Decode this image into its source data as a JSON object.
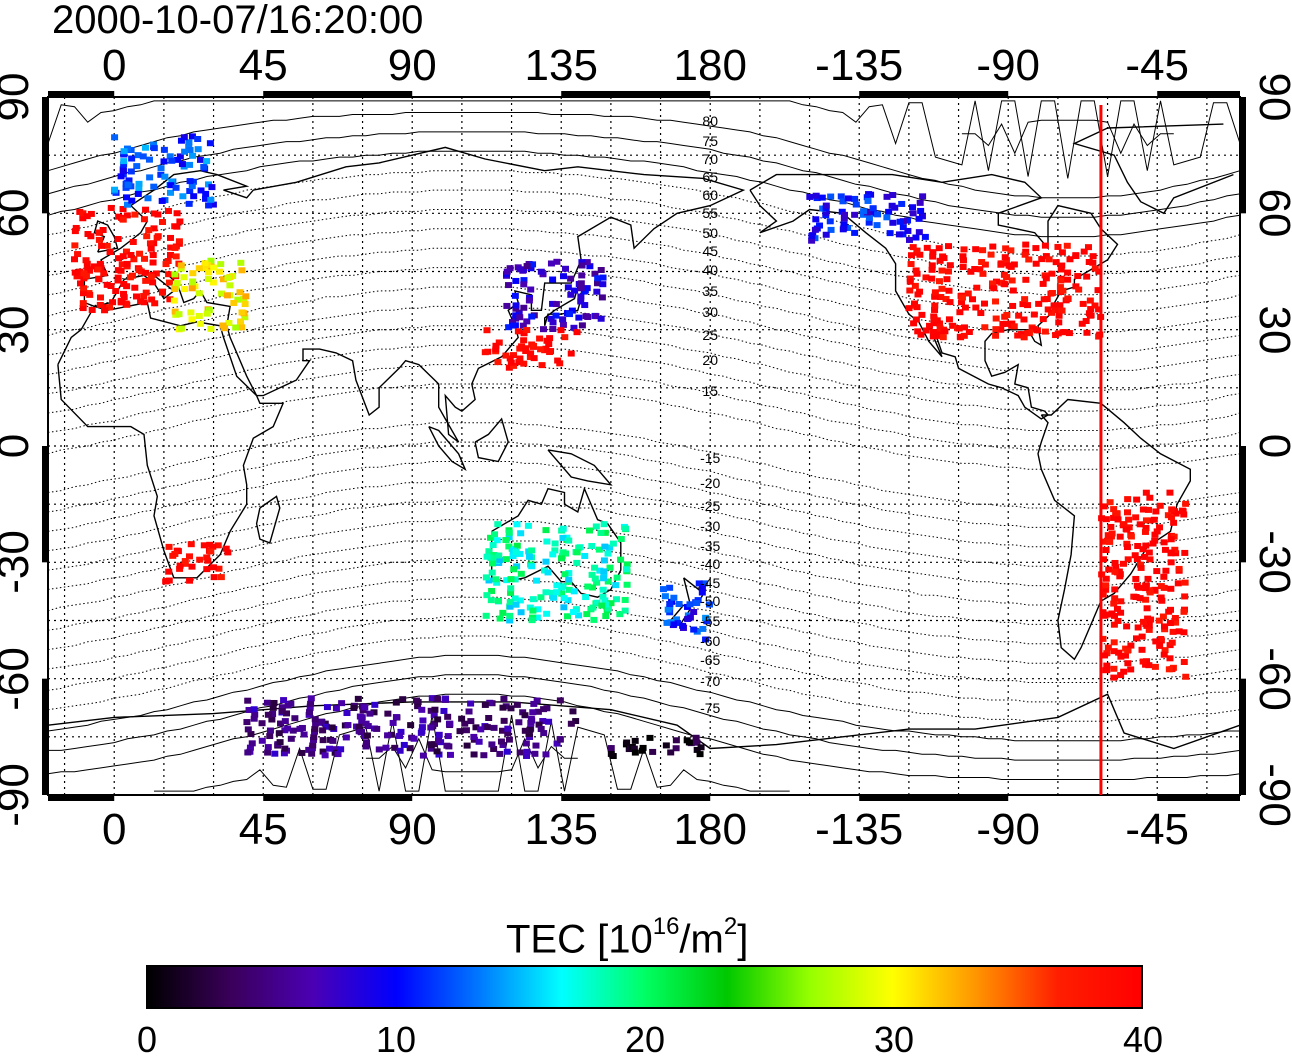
{
  "title": "2000-10-07/16:20:00",
  "map": {
    "lon_ticks_top": [
      "0",
      "45",
      "90",
      "135",
      "180",
      "-135",
      "-90",
      "-45"
    ],
    "lon_ticks_bottom": [
      "0",
      "45",
      "90",
      "135",
      "180",
      "-135",
      "-90",
      "-45"
    ],
    "lat_ticks_left": [
      "90",
      "60",
      "30",
      "0",
      "-30",
      "-60",
      "-90"
    ],
    "lat_ticks_right": [
      "90",
      "60",
      "30",
      "0",
      "-30",
      "-60",
      "-90"
    ],
    "lon_range": [
      -20,
      340
    ],
    "lat_range": [
      -90,
      90
    ],
    "projection": "cylindrical equidistant",
    "grid": "dotted every 15 degrees",
    "terminator_longitude": -62,
    "terminator_color": "#ff0000",
    "magnetic_lat_labels_north": [
      "80",
      "75",
      "70",
      "65",
      "60",
      "55",
      "50",
      "45",
      "40",
      "35",
      "30",
      "25",
      "20",
      "15"
    ],
    "magnetic_lat_labels_south": [
      "-15",
      "-20",
      "-25",
      "-30",
      "-35",
      "-40",
      "-45",
      "-50",
      "-55",
      "-60",
      "-65",
      "-70",
      "-75"
    ]
  },
  "colorbar": {
    "label_main": "TEC  [10",
    "label_exp": "16",
    "label_mid": "/m",
    "label_exp2": "2",
    "label_end": "]",
    "min": 0,
    "max": 40,
    "ticks": [
      "0",
      "10",
      "20",
      "30",
      "40"
    ],
    "colors": [
      "#000000",
      "#3a005a",
      "#4b00b4",
      "#0000ff",
      "#0078ff",
      "#00ffff",
      "#00ff64",
      "#00c800",
      "#96ff00",
      "#ffff00",
      "#ff9600",
      "#ff1e00",
      "#ff0000"
    ]
  },
  "chart_data": {
    "type": "heatmap",
    "title": "2000-10-07/16:20:00",
    "xlabel": "",
    "ylabel": "",
    "colorbar_label": "TEC  [10^16/m^2]",
    "value_range": [
      0,
      40
    ],
    "regions": [
      {
        "lon": [
          -12,
          20
        ],
        "lat": [
          35,
          62
        ],
        "tec": 40
      },
      {
        "lon": [
          0,
          30
        ],
        "lat": [
          62,
          80
        ],
        "tec": 12
      },
      {
        "lon": [
          18,
          40
        ],
        "lat": [
          30,
          48
        ],
        "tec": 30
      },
      {
        "lon": [
          118,
          148
        ],
        "lat": [
          30,
          48
        ],
        "tec": 8
      },
      {
        "lon": [
          112,
          140
        ],
        "lat": [
          20,
          30
        ],
        "tec": 40
      },
      {
        "lon": [
          -120,
          -62
        ],
        "lat": [
          28,
          52
        ],
        "tec": 40
      },
      {
        "lon": [
          -150,
          -115
        ],
        "lat": [
          52,
          65
        ],
        "tec": 10
      },
      {
        "lon": [
          -62,
          -36
        ],
        "lat": [
          -60,
          -12
        ],
        "tec": 40
      },
      {
        "lon": [
          15,
          35
        ],
        "lat": [
          -35,
          -25
        ],
        "tec": 40
      },
      {
        "lon": [
          112,
          155
        ],
        "lat": [
          -45,
          -20
        ],
        "tec": 18
      },
      {
        "lon": [
          165,
          180
        ],
        "lat": [
          -50,
          -35
        ],
        "tec": 11
      },
      {
        "lon": [
          40,
          140
        ],
        "lat": [
          -80,
          -65
        ],
        "tec": 5
      },
      {
        "lon": [
          148,
          180
        ],
        "lat": [
          -80,
          -75
        ],
        "tec": 1
      }
    ]
  }
}
